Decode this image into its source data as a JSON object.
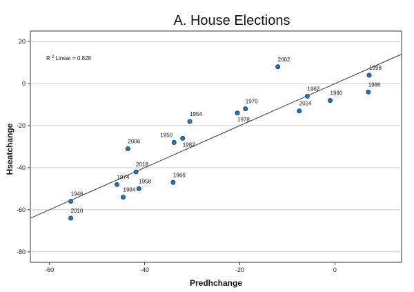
{
  "chart_data": {
    "type": "scatter",
    "title": "A.  House Elections",
    "xlabel": "Predhchange",
    "ylabel": "Hseatchange",
    "xlim": [
      -64,
      14
    ],
    "ylim": [
      -85,
      25
    ],
    "x_ticks": [
      -60,
      -40,
      -20,
      0
    ],
    "y_ticks": [
      20,
      0,
      -20,
      -40,
      -60,
      -80
    ],
    "grid": {
      "horizontal": true,
      "vertical": false
    },
    "annotation": {
      "prefix": "R",
      "superscript": "2",
      "suffix": " Linear = 0.828"
    },
    "fit_line": {
      "x": [
        -64,
        14
      ],
      "y": [
        -64,
        14
      ]
    },
    "marker_color": "#1f77b4",
    "marker_edge": "#1f3b5c",
    "points": [
      {
        "label": "1946",
        "x": -55.5,
        "y": -56
      },
      {
        "label": "2010",
        "x": -55.5,
        "y": -64
      },
      {
        "label": "1974",
        "x": -45.8,
        "y": -48
      },
      {
        "label": "1994",
        "x": -44.5,
        "y": -54
      },
      {
        "label": "2006",
        "x": -43.5,
        "y": -31
      },
      {
        "label": "2018",
        "x": -41.8,
        "y": -42
      },
      {
        "label": "1958",
        "x": -41.2,
        "y": -50
      },
      {
        "label": "1950",
        "x": -33.8,
        "y": -28
      },
      {
        "label": "1966",
        "x": -34.0,
        "y": -47
      },
      {
        "label": "1982",
        "x": -32.0,
        "y": -26
      },
      {
        "label": "1954",
        "x": -30.5,
        "y": -18
      },
      {
        "label": "1978",
        "x": -20.5,
        "y": -14
      },
      {
        "label": "1970",
        "x": -18.8,
        "y": -12
      },
      {
        "label": "2002",
        "x": -12.0,
        "y": 8
      },
      {
        "label": "2014",
        "x": -7.5,
        "y": -13
      },
      {
        "label": "1962",
        "x": -5.8,
        "y": -6
      },
      {
        "label": "1990",
        "x": -1.0,
        "y": -8
      },
      {
        "label": "1998",
        "x": 7.2,
        "y": 4
      },
      {
        "label": "1986",
        "x": 7.0,
        "y": -4
      }
    ]
  }
}
